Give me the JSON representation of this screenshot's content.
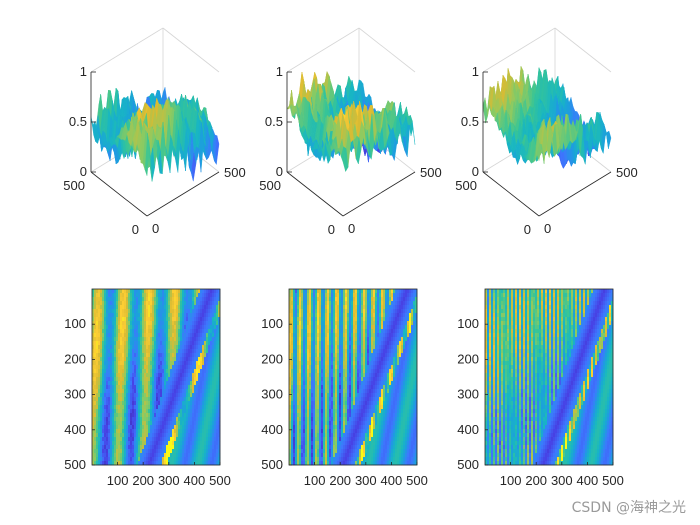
{
  "figure": {
    "watermark": "CSDN @海神之光",
    "colormap": [
      "#3e26a8",
      "#4743e6",
      "#3d78fe",
      "#1d9ddf",
      "#18b6c3",
      "#38c596",
      "#8dca61",
      "#d9bb33",
      "#fccd34",
      "#f9fb15"
    ]
  },
  "chart_data": [
    {
      "id": "surf-1",
      "type": "surface3d",
      "panel": "top-left",
      "xlim": [
        0,
        500
      ],
      "ylim": [
        0,
        500
      ],
      "zlim": [
        0,
        1
      ],
      "ztick_labels": [
        "0",
        "0.5",
        "1"
      ],
      "x_tick_labels": [
        "0",
        "500"
      ],
      "y_tick_labels": [
        "0",
        "500"
      ],
      "profile": {
        "base": 0.55,
        "peak_x": 0.22,
        "decline": 0.45,
        "stripe_freq": 9,
        "stripe_amp": 0.18,
        "noise": 0.18,
        "seed": 11
      }
    },
    {
      "id": "surf-2",
      "type": "surface3d",
      "panel": "top-center",
      "xlim": [
        0,
        500
      ],
      "ylim": [
        0,
        500
      ],
      "zlim": [
        0,
        1
      ],
      "ztick_labels": [
        "0",
        "0.5",
        "1"
      ],
      "x_tick_labels": [
        "0",
        "500"
      ],
      "y_tick_labels": [
        "0",
        "500"
      ],
      "profile": {
        "base": 0.6,
        "peak_x": 0.3,
        "decline": 0.5,
        "stripe_freq": 22,
        "stripe_amp": 0.16,
        "noise": 0.2,
        "seed": 23
      }
    },
    {
      "id": "surf-3",
      "type": "surface3d",
      "panel": "top-right",
      "xlim": [
        0,
        500
      ],
      "ylim": [
        0,
        500
      ],
      "zlim": [
        0,
        1
      ],
      "ztick_labels": [
        "0",
        "0.5",
        "1"
      ],
      "x_tick_labels": [
        "0",
        "500"
      ],
      "y_tick_labels": [
        "0",
        "500"
      ],
      "profile": {
        "base": 0.6,
        "peak_x": 0.28,
        "decline": 0.5,
        "stripe_freq": 40,
        "stripe_amp": 0.12,
        "noise": 0.18,
        "seed": 37
      }
    },
    {
      "id": "img-1",
      "type": "heatmap",
      "panel": "bottom-left",
      "xlim": [
        0,
        500
      ],
      "ylim": [
        0,
        500
      ],
      "x_ticks": [
        100,
        200,
        300,
        400,
        500
      ],
      "y_ticks": [
        100,
        200,
        300,
        400,
        500
      ],
      "profile": {
        "stripe_freq": 5,
        "stripe_amp": 0.3,
        "band_x0": 0.93,
        "band_x1": 0.45,
        "noise": 0.1,
        "seed": 5
      }
    },
    {
      "id": "img-2",
      "type": "heatmap",
      "panel": "bottom-center",
      "xlim": [
        0,
        500
      ],
      "ylim": [
        0,
        500
      ],
      "x_ticks": [
        100,
        200,
        300,
        400,
        500
      ],
      "y_ticks": [
        100,
        200,
        300,
        400,
        500
      ],
      "profile": {
        "stripe_freq": 14,
        "stripe_amp": 0.3,
        "band_x0": 0.92,
        "band_x1": 0.43,
        "noise": 0.1,
        "seed": 9
      }
    },
    {
      "id": "img-3",
      "type": "heatmap",
      "panel": "bottom-right",
      "xlim": [
        0,
        500
      ],
      "ylim": [
        0,
        500
      ],
      "x_ticks": [
        100,
        200,
        300,
        400,
        500
      ],
      "y_ticks": [
        100,
        200,
        300,
        400,
        500
      ],
      "profile": {
        "stripe_freq": 30,
        "stripe_amp": 0.22,
        "band_x0": 0.93,
        "band_x1": 0.46,
        "noise": 0.1,
        "seed": 13
      }
    }
  ]
}
